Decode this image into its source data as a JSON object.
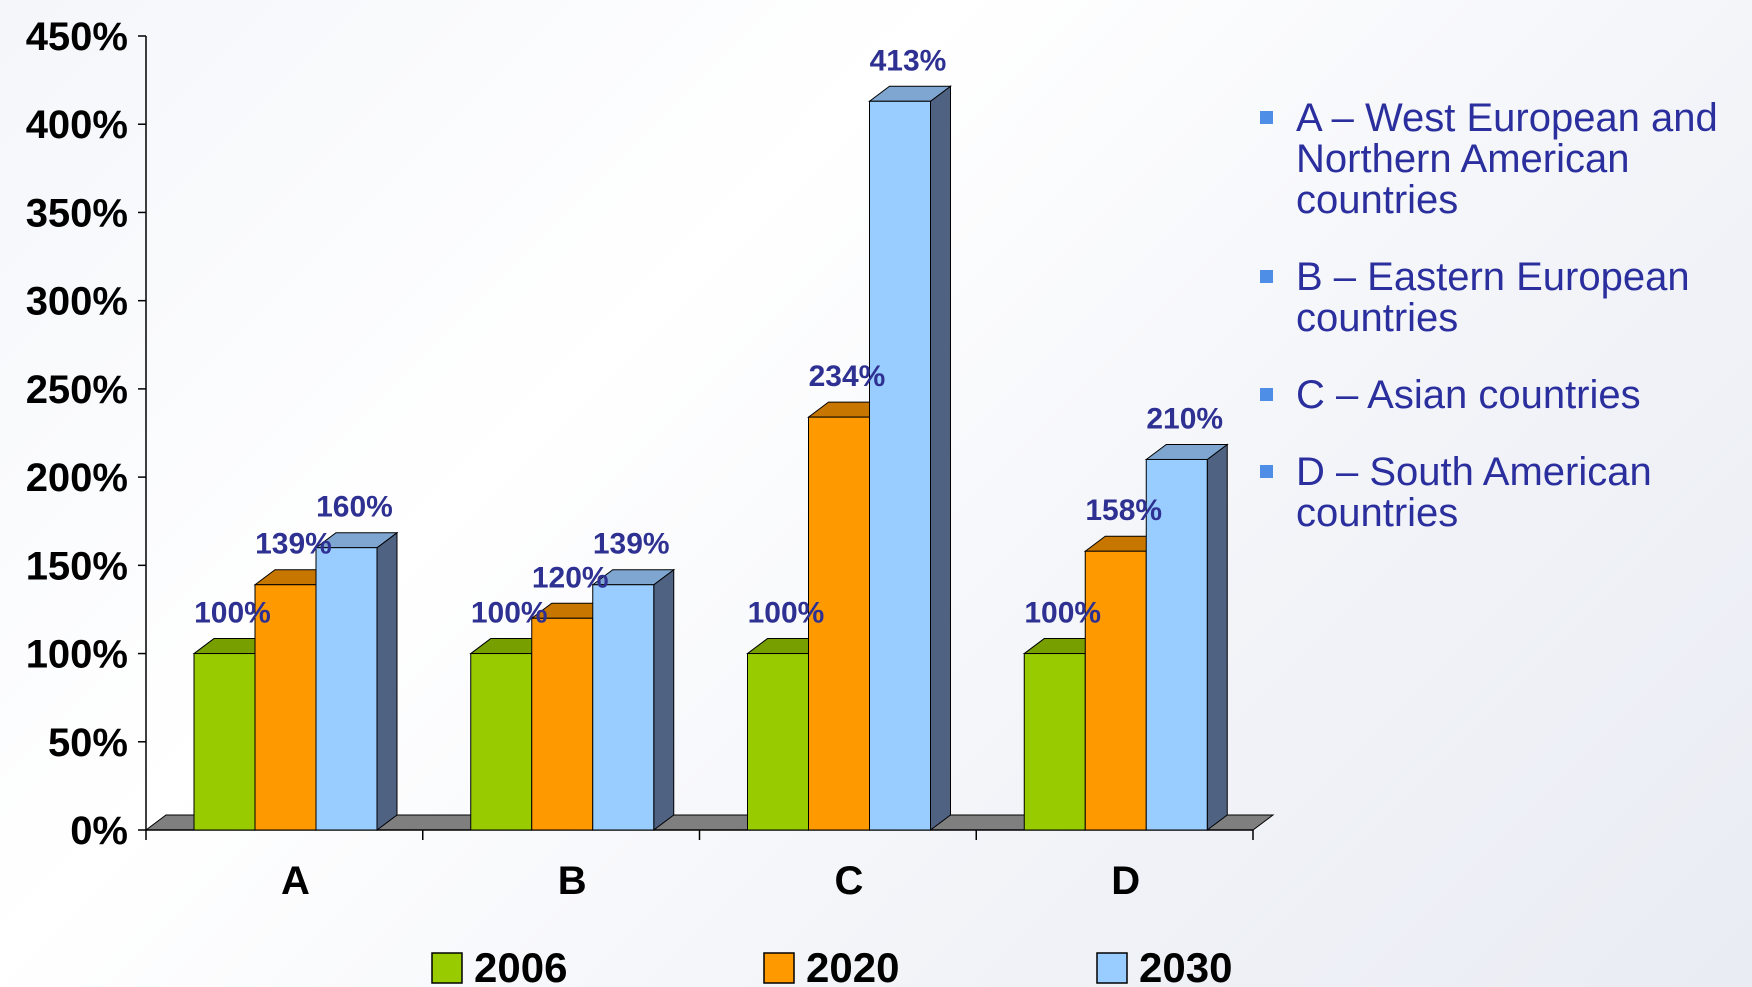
{
  "chart_data": {
    "type": "bar",
    "title": "",
    "xlabel": "",
    "ylabel": "",
    "ylim": [
      0,
      450
    ],
    "yticks": [
      0,
      50,
      100,
      150,
      200,
      250,
      300,
      350,
      400,
      450
    ],
    "ytick_labels": [
      "0%",
      "50%",
      "100%",
      "150%",
      "200%",
      "250%",
      "300%",
      "350%",
      "400%",
      "450%"
    ],
    "categories": [
      "A",
      "B",
      "C",
      "D"
    ],
    "series": [
      {
        "name": "2006",
        "color": "#99cc00",
        "values": [
          100,
          100,
          100,
          100
        ],
        "labels": [
          "100%",
          "100%",
          "100%",
          "100%"
        ]
      },
      {
        "name": "2020",
        "color": "#ff9900",
        "values": [
          139,
          120,
          234,
          158
        ],
        "labels": [
          "139%",
          "120%",
          "234%",
          "158%"
        ]
      },
      {
        "name": "2030",
        "color": "#99ccff",
        "values": [
          160,
          139,
          413,
          210
        ],
        "labels": [
          "160%",
          "139%",
          "413%",
          "210%"
        ]
      }
    ],
    "legend_position": "bottom",
    "three_d": true,
    "label_color": "#2e3192"
  },
  "notes": [
    "A – West European and Northern American countries",
    "B – Eastern European countries",
    "C – Asian countries",
    "D – South American countries"
  ]
}
